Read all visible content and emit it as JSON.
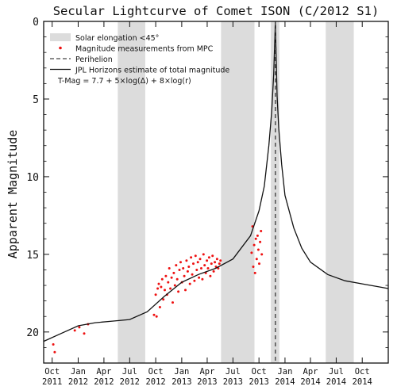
{
  "chart_data": {
    "type": "scatter",
    "title": "Secular Lightcurve of Comet ISON (C/2012 S1)",
    "ylabel": "Apparent Magnitude",
    "xlabel": "",
    "xlim": [
      "2011-09-01",
      "2015-01-01"
    ],
    "ylim": [
      22,
      0
    ],
    "y_inverted": true,
    "yticks": [
      0,
      5,
      10,
      15,
      20
    ],
    "xticks": [
      {
        "date": "2011-10-01",
        "month": "Oct",
        "year": "2011"
      },
      {
        "date": "2012-01-01",
        "month": "Jan",
        "year": "2012"
      },
      {
        "date": "2012-04-01",
        "month": "Apr",
        "year": "2012"
      },
      {
        "date": "2012-07-01",
        "month": "Jul",
        "year": "2012"
      },
      {
        "date": "2012-10-01",
        "month": "Oct",
        "year": "2012"
      },
      {
        "date": "2013-01-01",
        "month": "Jan",
        "year": "2013"
      },
      {
        "date": "2013-04-01",
        "month": "Apr",
        "year": "2013"
      },
      {
        "date": "2013-07-01",
        "month": "Jul",
        "year": "2013"
      },
      {
        "date": "2013-10-01",
        "month": "Oct",
        "year": "2013"
      },
      {
        "date": "2014-01-01",
        "month": "Jan",
        "year": "2014"
      },
      {
        "date": "2014-04-01",
        "month": "Apr",
        "year": "2014"
      },
      {
        "date": "2014-07-01",
        "month": "Jul",
        "year": "2014"
      },
      {
        "date": "2014-10-01",
        "month": "Oct",
        "year": "2014"
      }
    ],
    "solar_elongation_bands": [
      {
        "start": "2012-05-20",
        "end": "2012-08-25"
      },
      {
        "start": "2013-05-20",
        "end": "2013-09-15"
      },
      {
        "start": "2013-11-12",
        "end": "2013-12-12"
      },
      {
        "start": "2014-05-25",
        "end": "2014-09-01"
      }
    ],
    "perihelion": "2013-11-28",
    "legend": {
      "placement": "top-left",
      "entries": [
        {
          "label": "Solar elongation <45°",
          "type": "band",
          "color": "#dcdcdc"
        },
        {
          "label": "Magnitude measurements from MPC",
          "type": "point",
          "color": "#ee1111"
        },
        {
          "label": "Perihelion",
          "type": "dashed",
          "color": "#444444"
        },
        {
          "label": "JPL Horizons estimate of total magnitude",
          "type": "line",
          "color": "#111111"
        },
        {
          "label": "T-Mag = 7.7  + 5×log(Δ) + 8×log(r)",
          "type": "text",
          "color": "#111111"
        }
      ]
    },
    "series": [
      {
        "type": "line",
        "color": "#111111",
        "x": [
          "2011-09-01",
          "2011-11-01",
          "2012-01-01",
          "2012-03-01",
          "2012-05-01",
          "2012-07-01",
          "2012-09-01",
          "2012-11-01",
          "2013-01-01",
          "2013-03-01",
          "2013-05-01",
          "2013-07-01",
          "2013-09-01",
          "2013-10-01",
          "2013-10-20",
          "2013-11-05",
          "2013-11-15",
          "2013-11-22",
          "2013-11-26",
          "2013-11-28",
          "2013-12-01",
          "2013-12-04",
          "2013-12-10",
          "2013-12-20",
          "2014-01-01",
          "2014-02-01",
          "2014-03-01",
          "2014-04-01",
          "2014-06-01",
          "2014-08-01",
          "2014-10-01",
          "2014-12-01",
          "2015-01-01"
        ],
        "y": [
          20.6,
          20.1,
          19.6,
          19.4,
          19.3,
          19.2,
          18.7,
          17.7,
          16.8,
          16.3,
          15.9,
          15.3,
          13.8,
          12.2,
          10.6,
          8.0,
          5.8,
          3.4,
          1.2,
          0.0,
          2.5,
          4.8,
          6.9,
          9.2,
          11.2,
          13.3,
          14.6,
          15.5,
          16.3,
          16.7,
          16.9,
          17.1,
          17.2
        ]
      },
      {
        "type": "scatter",
        "color": "#ee1111",
        "measurements": [
          {
            "date": "2011-10-05",
            "mag": 20.8
          },
          {
            "date": "2011-10-10",
            "mag": 21.3
          },
          {
            "date": "2011-12-20",
            "mag": 19.9
          },
          {
            "date": "2012-01-05",
            "mag": 19.7
          },
          {
            "date": "2012-01-22",
            "mag": 20.1
          },
          {
            "date": "2012-02-05",
            "mag": 19.5
          },
          {
            "date": "2012-09-25",
            "mag": 18.9
          },
          {
            "date": "2012-10-01",
            "mag": 17.6
          },
          {
            "date": "2012-10-04",
            "mag": 19.0
          },
          {
            "date": "2012-10-08",
            "mag": 17.2
          },
          {
            "date": "2012-10-12",
            "mag": 16.9
          },
          {
            "date": "2012-10-16",
            "mag": 18.4
          },
          {
            "date": "2012-10-20",
            "mag": 17.1
          },
          {
            "date": "2012-10-24",
            "mag": 16.6
          },
          {
            "date": "2012-10-28",
            "mag": 17.9
          },
          {
            "date": "2012-11-02",
            "mag": 17.3
          },
          {
            "date": "2012-11-06",
            "mag": 16.4
          },
          {
            "date": "2012-11-10",
            "mag": 17.6
          },
          {
            "date": "2012-11-14",
            "mag": 16.8
          },
          {
            "date": "2012-11-18",
            "mag": 15.9
          },
          {
            "date": "2012-11-22",
            "mag": 17.2
          },
          {
            "date": "2012-11-26",
            "mag": 16.5
          },
          {
            "date": "2012-11-30",
            "mag": 18.1
          },
          {
            "date": "2012-12-04",
            "mag": 16.2
          },
          {
            "date": "2012-12-08",
            "mag": 17.0
          },
          {
            "date": "2012-12-12",
            "mag": 15.7
          },
          {
            "date": "2012-12-16",
            "mag": 16.6
          },
          {
            "date": "2012-12-20",
            "mag": 17.4
          },
          {
            "date": "2012-12-24",
            "mag": 16.0
          },
          {
            "date": "2012-12-28",
            "mag": 15.5
          },
          {
            "date": "2013-01-02",
            "mag": 16.8
          },
          {
            "date": "2013-01-06",
            "mag": 15.9
          },
          {
            "date": "2013-01-10",
            "mag": 16.4
          },
          {
            "date": "2013-01-14",
            "mag": 17.3
          },
          {
            "date": "2013-01-18",
            "mag": 15.4
          },
          {
            "date": "2013-01-22",
            "mag": 16.1
          },
          {
            "date": "2013-01-26",
            "mag": 15.8
          },
          {
            "date": "2013-01-30",
            "mag": 16.9
          },
          {
            "date": "2013-02-03",
            "mag": 15.2
          },
          {
            "date": "2013-02-07",
            "mag": 16.3
          },
          {
            "date": "2013-02-11",
            "mag": 15.6
          },
          {
            "date": "2013-02-15",
            "mag": 16.7
          },
          {
            "date": "2013-02-19",
            "mag": 15.1
          },
          {
            "date": "2013-02-23",
            "mag": 16.0
          },
          {
            "date": "2013-02-27",
            "mag": 15.5
          },
          {
            "date": "2013-03-03",
            "mag": 16.5
          },
          {
            "date": "2013-03-07",
            "mag": 15.3
          },
          {
            "date": "2013-03-11",
            "mag": 15.9
          },
          {
            "date": "2013-03-15",
            "mag": 16.6
          },
          {
            "date": "2013-03-19",
            "mag": 15.0
          },
          {
            "date": "2013-03-23",
            "mag": 15.7
          },
          {
            "date": "2013-03-27",
            "mag": 16.2
          },
          {
            "date": "2013-03-31",
            "mag": 15.4
          },
          {
            "date": "2013-04-04",
            "mag": 15.9
          },
          {
            "date": "2013-04-08",
            "mag": 15.2
          },
          {
            "date": "2013-04-12",
            "mag": 16.4
          },
          {
            "date": "2013-04-16",
            "mag": 15.6
          },
          {
            "date": "2013-04-20",
            "mag": 15.1
          },
          {
            "date": "2013-04-24",
            "mag": 16.1
          },
          {
            "date": "2013-04-28",
            "mag": 15.5
          },
          {
            "date": "2013-05-02",
            "mag": 15.8
          },
          {
            "date": "2013-05-06",
            "mag": 15.3
          },
          {
            "date": "2013-05-10",
            "mag": 15.9
          },
          {
            "date": "2013-05-14",
            "mag": 15.6
          },
          {
            "date": "2013-05-18",
            "mag": 15.4
          },
          {
            "date": "2013-09-05",
            "mag": 14.9
          },
          {
            "date": "2013-09-08",
            "mag": 13.2
          },
          {
            "date": "2013-09-11",
            "mag": 15.8
          },
          {
            "date": "2013-09-14",
            "mag": 14.4
          },
          {
            "date": "2013-09-17",
            "mag": 16.2
          },
          {
            "date": "2013-09-20",
            "mag": 14.0
          },
          {
            "date": "2013-09-23",
            "mag": 15.3
          },
          {
            "date": "2013-09-26",
            "mag": 13.8
          },
          {
            "date": "2013-09-29",
            "mag": 14.7
          },
          {
            "date": "2013-10-02",
            "mag": 15.6
          },
          {
            "date": "2013-10-05",
            "mag": 14.2
          },
          {
            "date": "2013-10-08",
            "mag": 13.5
          },
          {
            "date": "2013-10-11",
            "mag": 15.0
          }
        ]
      }
    ]
  }
}
